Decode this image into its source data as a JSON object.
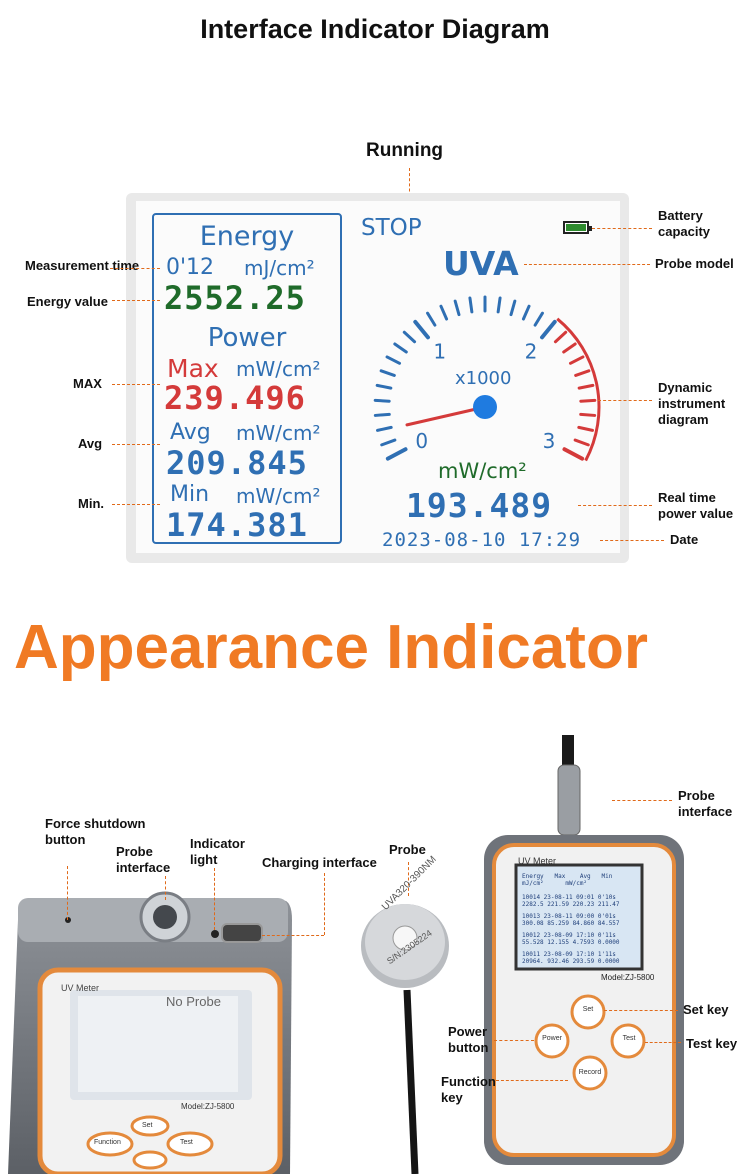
{
  "title": "Interface Indicator Diagram",
  "running_label": "Running",
  "lcd": {
    "status": "STOP",
    "probe_model": "UVA",
    "energy_title": "Energy",
    "measurement_time": "0'12",
    "energy_unit": "mJ/cm²",
    "energy_value": "2552.25",
    "power_title": "Power",
    "max_label": "Max",
    "max_unit": "mW/cm²",
    "max_value": "239.496",
    "avg_label": "Avg",
    "avg_unit": "mW/cm²",
    "avg_value": "209.845",
    "min_label": "Min",
    "min_unit": "mW/cm²",
    "min_value": "174.381",
    "gauge_multiplier": "x1000",
    "gauge_ticks": [
      "0",
      "1",
      "2",
      "3"
    ],
    "gauge_unit": "mW/cm²",
    "gauge_level": 0.064,
    "realtime_value": "193.489",
    "datetime": "2023-08-10 17:29",
    "colors": {
      "blue": "#2f6fb3",
      "red": "#d43a3a",
      "green": "#1f6b2a",
      "battery": "#2e8b2e"
    }
  },
  "callouts": {
    "battery": "Battery capacity",
    "probe_model": "Probe model",
    "measurement_time": "Measurement time",
    "energy_value": "Energy value",
    "max": "MAX",
    "avg": "Avg",
    "min": "Min.",
    "dynamic": "Dynamic instrument diagram",
    "realtime": "Real time power value",
    "date": "Date"
  },
  "appearance_title": "Appearance Indicator",
  "appearance_callouts": {
    "force_shutdown": "Force shutdown button",
    "probe_interface_left": "Probe interface",
    "indicator_light": "Indicator light",
    "charging_interface": "Charging interface",
    "probe": "Probe",
    "probe_interface_right": "Probe interface",
    "set_key": "Set key",
    "power_button": "Power button",
    "test_key": "Test key",
    "function_key": "Function key"
  },
  "devices": {
    "brand": "UV Meter",
    "model": "Model:ZJ-5800",
    "no_probe": "No Probe",
    "probe_text": "UVA320-390NM",
    "serial": "S/N:2305224",
    "key_set": "Set",
    "key_power": "Power",
    "key_test": "Test",
    "key_record": "Record",
    "table_headers": [
      "Energy",
      "Max",
      "Avg",
      "Min"
    ],
    "table_units": [
      "mJ/cm²",
      "",
      "mW/cm²",
      ""
    ],
    "records": [
      [
        "10014 23-08-11 09:01 0'10s",
        "2282.5 221.59 220.23 211.47"
      ],
      [
        "10013 23-08-11 09:00 0'01s",
        "300.08 85.259 84.860 84.557"
      ],
      [
        "10012 23-08-09 17:10 0'11s",
        "55.528 12.155 4.7593 0.0000"
      ],
      [
        "10011 23-08-09 17:10 1'11s",
        "20964. 932.46 293.59 0.0000"
      ]
    ],
    "left_keys": [
      "Function",
      "Set",
      "Test"
    ]
  }
}
